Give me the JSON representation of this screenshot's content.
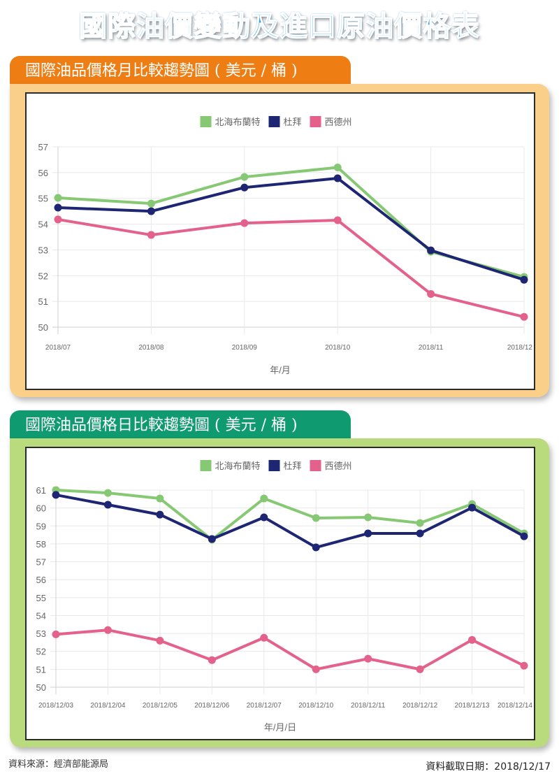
{
  "header": {
    "title": "國際油價變動及進口原油價格表"
  },
  "sections": [
    {
      "title": "國際油品價格月比較趨勢圖 ( 美元 / 桶 )"
    },
    {
      "title": "國際油品價格日比較趨勢圖 ( 美元 / 桶 )"
    }
  ],
  "legend": [
    {
      "label": "北海布蘭特",
      "color": "#86c873"
    },
    {
      "label": "杜拜",
      "color": "#1e2674"
    },
    {
      "label": "西德州",
      "color": "#e3618a"
    }
  ],
  "footer": {
    "source": "資料來源：經濟部能源局",
    "retrieved": "資料截取日期：2018/12/17"
  },
  "chart_data": [
    {
      "type": "line",
      "title": "國際油品價格月比較趨勢圖 ( 美元 / 桶 )",
      "xlabel": "年/月",
      "ylabel": "",
      "categories": [
        "2018/07",
        "2018/08",
        "2018/09",
        "2018/10",
        "2018/11",
        "2018/12"
      ],
      "ylim": [
        50,
        57
      ],
      "yticks": [
        50,
        51,
        52,
        53,
        54,
        55,
        56,
        57
      ],
      "grid": true,
      "legend_position": "top",
      "series": [
        {
          "name": "北海布蘭特",
          "color": "#86c873",
          "values": [
            55.02,
            54.8,
            55.83,
            56.2,
            52.93,
            51.95
          ]
        },
        {
          "name": "杜拜",
          "color": "#1e2674",
          "values": [
            54.64,
            54.5,
            55.42,
            55.78,
            52.98,
            51.84
          ]
        },
        {
          "name": "西德州",
          "color": "#e3618a",
          "values": [
            54.18,
            53.58,
            54.04,
            54.15,
            51.29,
            50.4
          ]
        }
      ]
    },
    {
      "type": "line",
      "title": "國際油品價格日比較趨勢圖 ( 美元 / 桶 )",
      "xlabel": "年/月/日",
      "ylabel": "",
      "categories": [
        "2018/12/03",
        "2018/12/04",
        "2018/12/05",
        "2018/12/06",
        "2018/12/07",
        "2018/12/10",
        "2018/12/11",
        "2018/12/12",
        "2018/12/13",
        "2018/12/14"
      ],
      "ylim": [
        50,
        61
      ],
      "yticks": [
        50,
        51,
        52,
        53,
        54,
        55,
        56,
        57,
        58,
        59,
        60,
        61
      ],
      "grid": true,
      "legend_position": "top",
      "series": [
        {
          "name": "北海布蘭特",
          "color": "#86c873",
          "values": [
            61.0,
            60.84,
            60.53,
            58.23,
            60.53,
            59.44,
            59.48,
            59.16,
            60.22,
            58.58
          ]
        },
        {
          "name": "杜拜",
          "color": "#1e2674",
          "values": [
            60.73,
            60.18,
            59.63,
            58.27,
            59.48,
            57.8,
            58.58,
            58.58,
            60.02,
            58.42
          ]
        },
        {
          "name": "西德州",
          "color": "#e3618a",
          "values": [
            52.95,
            53.19,
            52.6,
            51.51,
            52.76,
            51.0,
            51.59,
            51.0,
            52.64,
            51.2
          ]
        }
      ]
    }
  ]
}
